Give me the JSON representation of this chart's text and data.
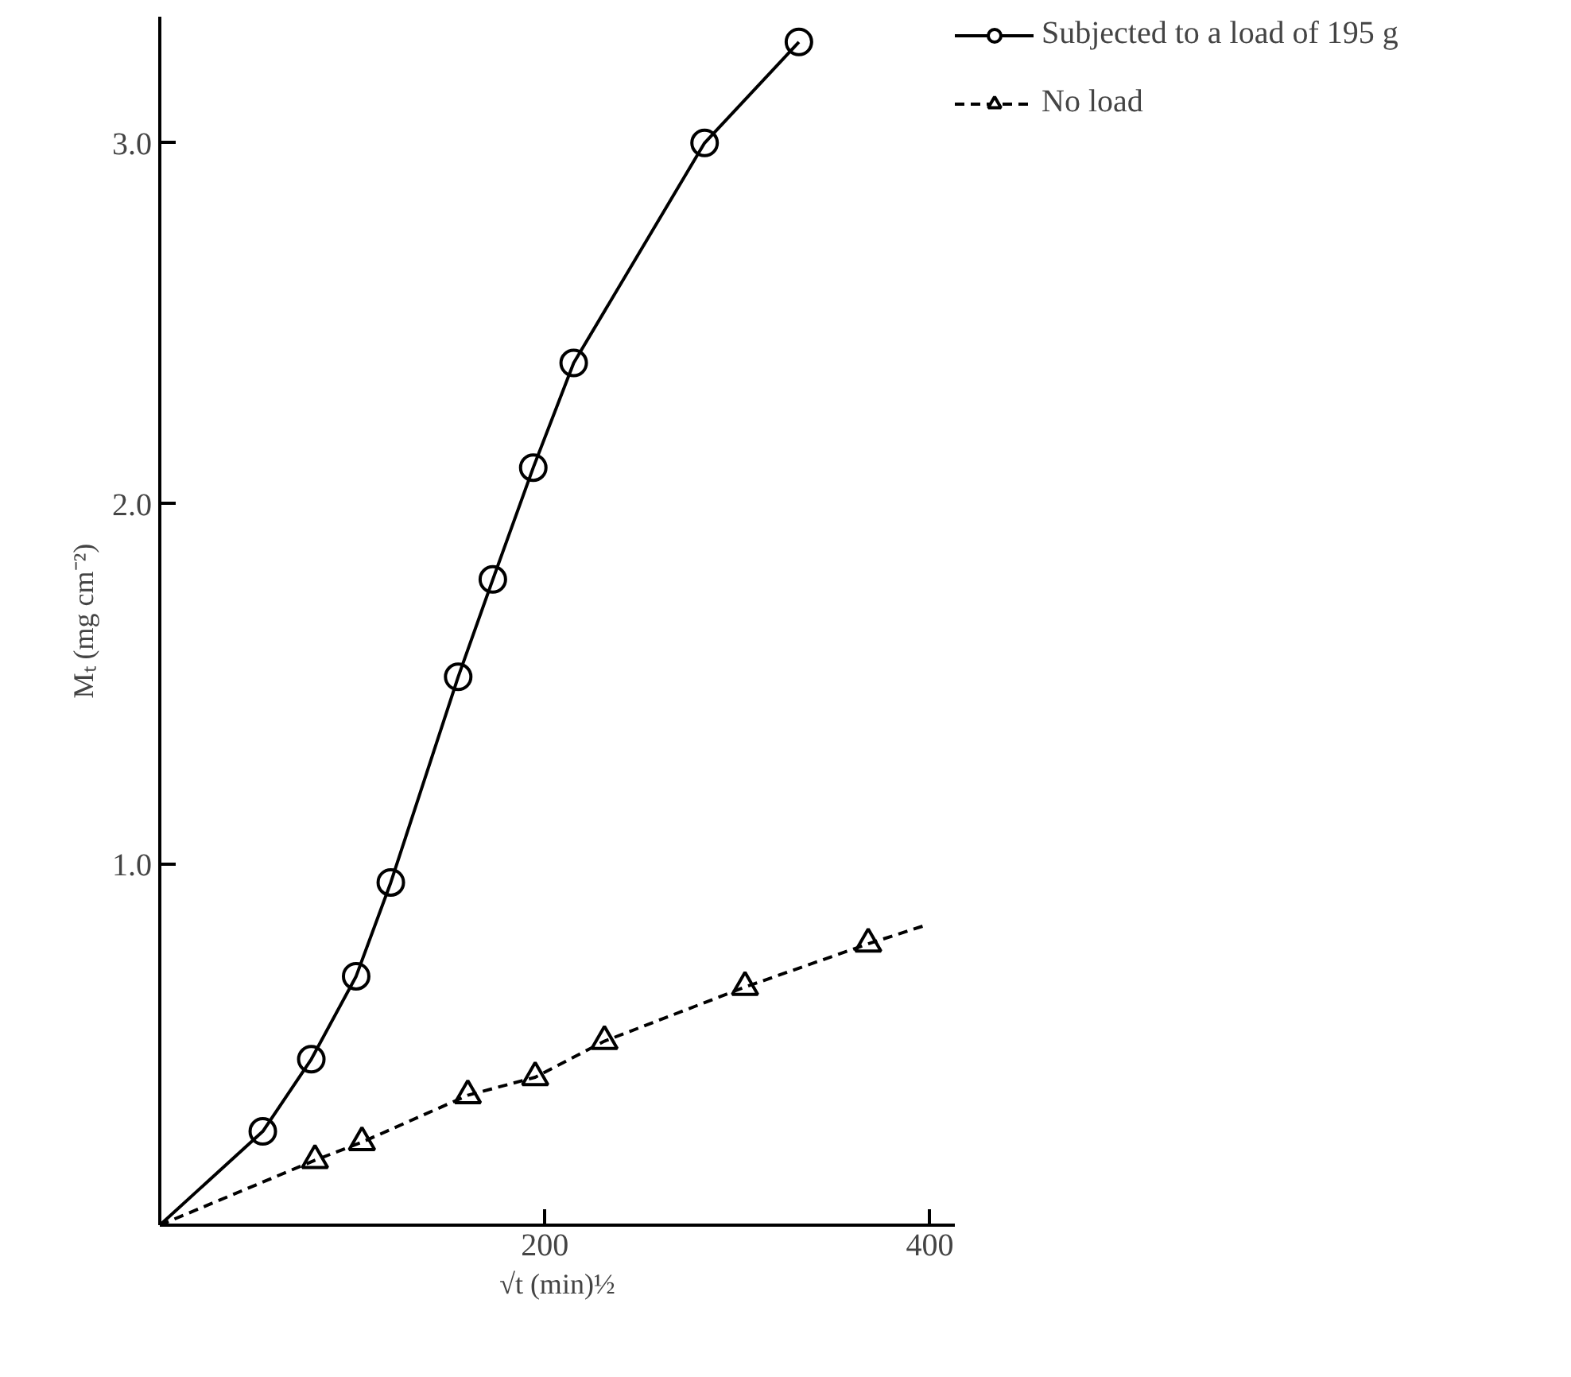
{
  "chart_data": {
    "type": "scatter",
    "xlabel": "√t (min)½",
    "ylabel": "Mₜ (mg cm⁻²)",
    "xlim": [
      0,
      413
    ],
    "ylim": [
      0,
      3.35
    ],
    "xticks": [
      200,
      400
    ],
    "yticks": [
      {
        "value": 1,
        "label": "1.0"
      },
      {
        "value": 2,
        "label": "2.0"
      },
      {
        "value": 3,
        "label": "3.0"
      }
    ],
    "grid": false,
    "legend": "right",
    "series": [
      {
        "name": "Subjected to a load of 195 g",
        "marker": "circle",
        "color": "#000000",
        "x": [
          53.5,
          78.7,
          102,
          120,
          155,
          173,
          194,
          215,
          283,
          332
        ],
        "values": [
          0.26,
          0.46,
          0.69,
          0.95,
          1.52,
          1.79,
          2.1,
          2.39,
          3.0,
          3.28
        ]
      },
      {
        "type": "line",
        "line_style": "solid",
        "color": "#000000",
        "x": [
          0,
          53.5,
          78.7,
          102,
          120,
          155,
          173,
          194,
          215,
          283,
          332
        ],
        "values": [
          0,
          0.26,
          0.46,
          0.69,
          0.95,
          1.52,
          1.79,
          2.1,
          2.39,
          3.0,
          3.28
        ]
      },
      {
        "name": "No load",
        "marker": "triangle",
        "color": "#000000",
        "x": [
          80.6,
          105,
          160,
          195,
          231,
          304,
          368
        ],
        "values": [
          0.18,
          0.23,
          0.36,
          0.41,
          0.51,
          0.66,
          0.78
        ]
      },
      {
        "type": "line",
        "line_style": "dashed",
        "color": "#000000",
        "x": [
          0,
          80.6,
          105,
          160,
          195,
          231,
          304,
          368,
          397
        ],
        "values": [
          0,
          0.18,
          0.23,
          0.36,
          0.41,
          0.51,
          0.66,
          0.78,
          0.83
        ]
      }
    ]
  }
}
